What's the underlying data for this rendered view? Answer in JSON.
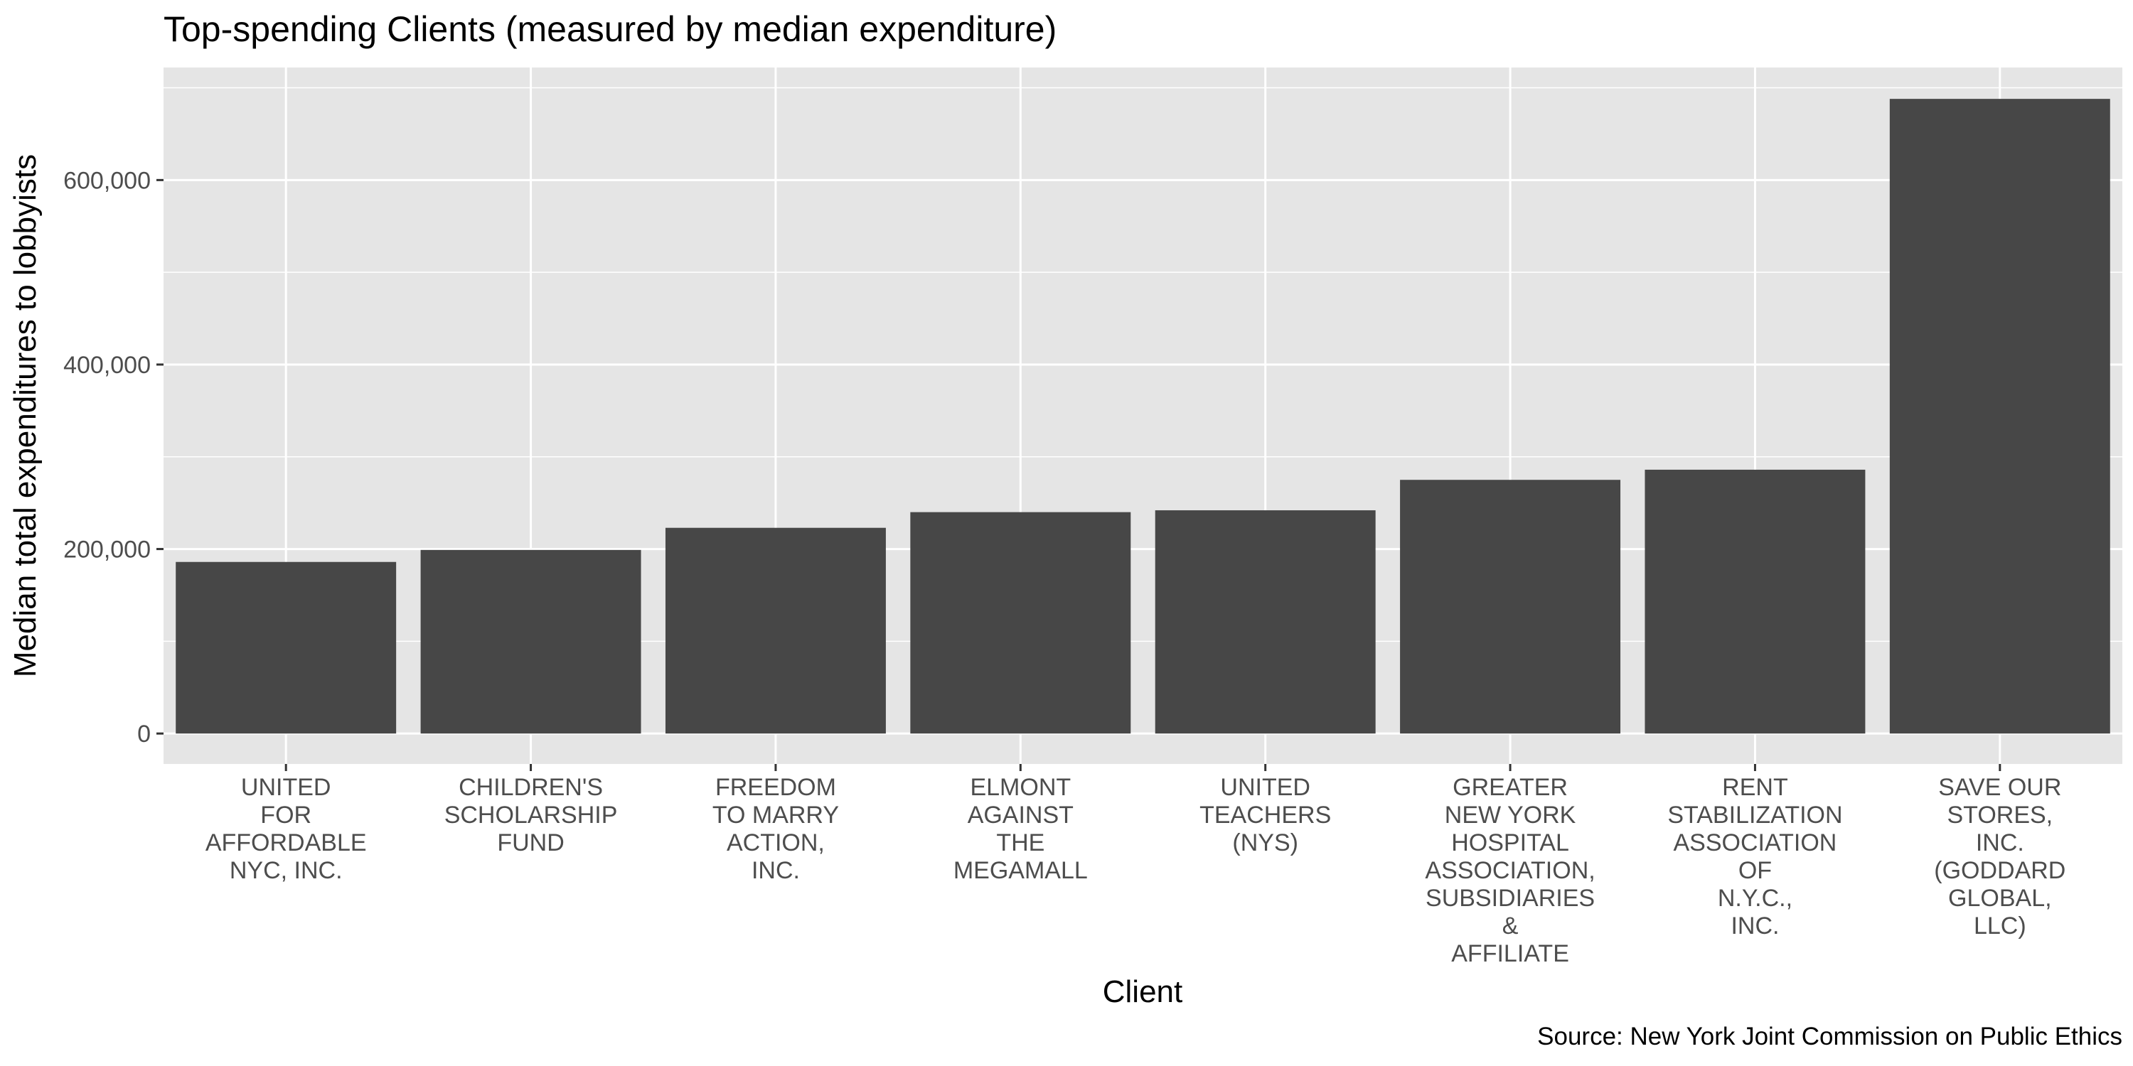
{
  "chart_data": {
    "type": "bar",
    "title": "Top-spending Clients (measured by median expenditure)",
    "xlabel": "Client",
    "ylabel": "Median total expenditures to lobbyists",
    "caption": "Source: New York Joint Commission on Public Ethics",
    "categories": [
      [
        "UNITED",
        "FOR",
        "AFFORDABLE",
        "NYC, INC."
      ],
      [
        "CHILDREN'S",
        "SCHOLARSHIP",
        "FUND"
      ],
      [
        "FREEDOM",
        "TO MARRY",
        "ACTION,",
        "INC."
      ],
      [
        "ELMONT",
        "AGAINST",
        "THE",
        "MEGAMALL"
      ],
      [
        "UNITED",
        "TEACHERS",
        "(NYS)"
      ],
      [
        "GREATER",
        "NEW YORK",
        "HOSPITAL",
        "ASSOCIATION,",
        "SUBSIDIARIES",
        "&",
        "AFFILIATE"
      ],
      [
        "RENT",
        "STABILIZATION",
        "ASSOCIATION",
        "OF",
        "N.Y.C.,",
        "INC."
      ],
      [
        "SAVE OUR",
        "STORES,",
        "INC.",
        "(GODDARD",
        "GLOBAL,",
        "LLC)"
      ]
    ],
    "values": [
      186000,
      199000,
      223000,
      240000,
      242000,
      275000,
      286000,
      688000
    ],
    "ylim": [
      -33000,
      722000
    ],
    "yticks": [
      0,
      200000,
      400000,
      600000
    ],
    "ytick_labels": [
      "0",
      "200,000",
      "400,000",
      "600,000"
    ],
    "grid": true,
    "bar_color": "#474747",
    "panel_color": "#E5E5E5",
    "grid_color": "#FFFFFF"
  }
}
